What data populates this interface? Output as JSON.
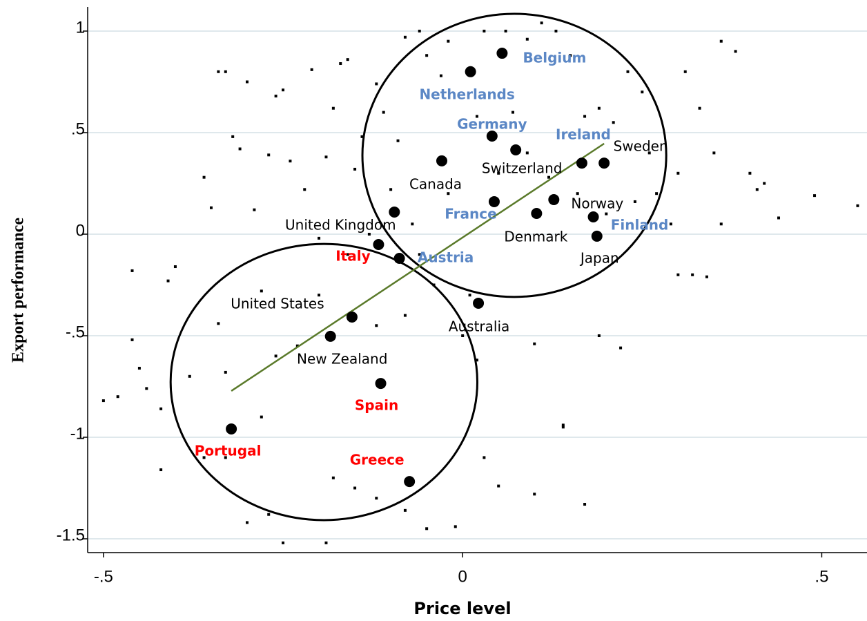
{
  "chart_data": {
    "type": "scatter",
    "xlabel": "Price level",
    "ylabel": "Export performance",
    "xlim": [
      -0.522,
      0.563
    ],
    "ylim": [
      -1.568,
      1.119
    ],
    "xticks": [
      {
        "value": -0.5,
        "label": "-.5"
      },
      0,
      {
        "value": 0.5,
        "label": ".5"
      }
    ],
    "yticks": [
      1,
      {
        "value": 0.5,
        "label": ".5"
      },
      0,
      {
        "value": -0.5,
        "label": "-.5"
      },
      -1,
      {
        "value": -1.5,
        "label": "-1.5"
      }
    ],
    "grid": true,
    "countries": [
      {
        "label": "Belgium",
        "x": 0.055,
        "y": 0.891,
        "color": "#5b87c5"
      },
      {
        "label": "Netherlands",
        "x": 0.011,
        "y": 0.8,
        "color": "#5b87c5"
      },
      {
        "label": "Germany",
        "x": 0.041,
        "y": 0.483,
        "color": "#5b87c5"
      },
      {
        "label": "Switzerland",
        "x": 0.074,
        "y": 0.415,
        "color": "#000000"
      },
      {
        "label": "Canada",
        "x": -0.029,
        "y": 0.361,
        "color": "#000000"
      },
      {
        "label": "Ireland",
        "x": 0.166,
        "y": 0.35,
        "color": "#5b87c5"
      },
      {
        "label": "Sweden",
        "x": 0.197,
        "y": 0.35,
        "color": "#000000"
      },
      {
        "label": "France",
        "x": 0.044,
        "y": 0.16,
        "color": "#5b87c5"
      },
      {
        "label": "Norway",
        "x": 0.127,
        "y": 0.17,
        "color": "#000000"
      },
      {
        "label": "Denmark",
        "x": 0.103,
        "y": 0.102,
        "color": "#000000"
      },
      {
        "label": "Finland",
        "x": 0.182,
        "y": 0.085,
        "color": "#5b87c5"
      },
      {
        "label": "Japan",
        "x": 0.187,
        "y": -0.01,
        "color": "#000000"
      },
      {
        "label": "United Kingdom",
        "x": -0.095,
        "y": 0.109,
        "color": "#000000"
      },
      {
        "label": "Italy",
        "x": -0.117,
        "y": -0.051,
        "color": "#ff0000"
      },
      {
        "label": "Austria",
        "x": -0.088,
        "y": -0.119,
        "color": "#5b87c5"
      },
      {
        "label": "Australia",
        "x": 0.022,
        "y": -0.34,
        "color": "#000000"
      },
      {
        "label": "United States",
        "x": -0.154,
        "y": -0.408,
        "color": "#000000"
      },
      {
        "label": "New Zealand",
        "x": -0.184,
        "y": -0.503,
        "color": "#000000"
      },
      {
        "label": "Spain",
        "x": -0.114,
        "y": -0.735,
        "color": "#ff0000"
      },
      {
        "label": "Portugal",
        "x": -0.322,
        "y": -0.959,
        "color": "#ff0000"
      },
      {
        "label": "Greece",
        "x": -0.074,
        "y": -1.218,
        "color": "#ff0000"
      }
    ],
    "small_points": {
      "x": [
        -0.5,
        -0.48,
        -0.46,
        -0.46,
        -0.45,
        -0.44,
        -0.42,
        -0.42,
        -0.41,
        -0.4,
        -0.38,
        -0.36,
        -0.35,
        -0.34,
        -0.34,
        -0.33,
        -0.33,
        -0.32,
        -0.31,
        -0.3,
        -0.3,
        -0.29,
        -0.28,
        -0.27,
        -0.26,
        -0.25,
        -0.24,
        -0.22,
        -0.21,
        -0.2,
        -0.19,
        -0.18,
        -0.17,
        -0.16,
        -0.15,
        -0.14,
        -0.12,
        -0.11,
        -0.09,
        -0.08,
        -0.06,
        -0.05,
        -0.03,
        -0.02,
        0.02,
        0.03,
        0.06,
        0.07,
        0.09,
        0.11,
        0.13,
        0.15,
        0.17,
        0.19,
        0.21,
        0.23,
        0.25,
        0.26,
        0.27,
        0.29,
        0.3,
        0.31,
        0.33,
        0.35,
        0.36,
        0.38,
        0.4,
        0.41,
        0.42,
        0.44,
        0.49,
        0.55,
        0.36,
        0.3,
        0.32,
        0.34,
        0.22,
        0.19,
        0.14,
        0.17,
        0.14,
        0.1,
        0.05,
        0.03,
        -0.01,
        -0.05,
        -0.08,
        -0.12,
        -0.15,
        -0.18,
        -0.19,
        -0.25,
        -0.27,
        -0.33,
        -0.36,
        -0.12,
        -0.08,
        0.0,
        0.02,
        0.1,
        0.01,
        -0.04,
        -0.06,
        0.05,
        0.12,
        0.16,
        0.2,
        0.24,
        0.09,
        -0.02,
        -0.07,
        -0.1,
        -0.13,
        -0.16,
        -0.2,
        -0.23,
        -0.26,
        -0.28
      ],
      "y": [
        -0.82,
        -0.8,
        -0.18,
        -0.52,
        -0.66,
        -0.76,
        -1.16,
        -0.86,
        -0.23,
        -0.16,
        -0.7,
        0.28,
        0.13,
        -0.44,
        0.8,
        0.8,
        -0.68,
        0.48,
        0.42,
        0.75,
        -1.42,
        0.12,
        -0.28,
        0.39,
        0.68,
        0.71,
        0.36,
        0.22,
        0.81,
        -0.02,
        0.38,
        0.62,
        0.84,
        0.86,
        0.32,
        0.48,
        0.74,
        0.6,
        0.46,
        0.97,
        1.0,
        0.88,
        0.78,
        0.95,
        0.58,
        1.0,
        1.0,
        0.6,
        0.96,
        1.04,
        1.0,
        0.88,
        0.58,
        0.62,
        0.55,
        0.8,
        0.7,
        0.4,
        0.2,
        0.05,
        0.3,
        0.8,
        0.62,
        0.4,
        0.95,
        0.9,
        0.3,
        0.22,
        0.25,
        0.08,
        0.19,
        0.14,
        0.05,
        -0.2,
        -0.2,
        -0.21,
        -0.56,
        -0.5,
        -0.94,
        -1.33,
        -0.95,
        -1.28,
        -1.24,
        -1.1,
        -1.44,
        -1.45,
        -1.36,
        -1.3,
        -1.25,
        -1.2,
        -1.52,
        -1.52,
        -1.38,
        -1.1,
        -1.1,
        -0.45,
        -0.4,
        -0.5,
        -0.62,
        -0.54,
        -0.3,
        -0.25,
        -0.1,
        0.3,
        0.28,
        0.2,
        0.1,
        0.16,
        0.4,
        0.2,
        0.05,
        0.22,
        0.0,
        -0.1,
        -0.3,
        -0.55,
        -0.6,
        -0.9
      ]
    },
    "fit_line": {
      "x": [
        -0.322,
        0.197
      ],
      "y": [
        -0.772,
        0.446
      ],
      "color": "#5a7a2a"
    },
    "ellipses": [
      {
        "cx": 0.072,
        "cy": 0.388,
        "rx": 0.2115,
        "ry": 0.697
      },
      {
        "cx": -0.193,
        "cy": -0.728,
        "rx": 0.2135,
        "ry": 0.68
      }
    ]
  }
}
